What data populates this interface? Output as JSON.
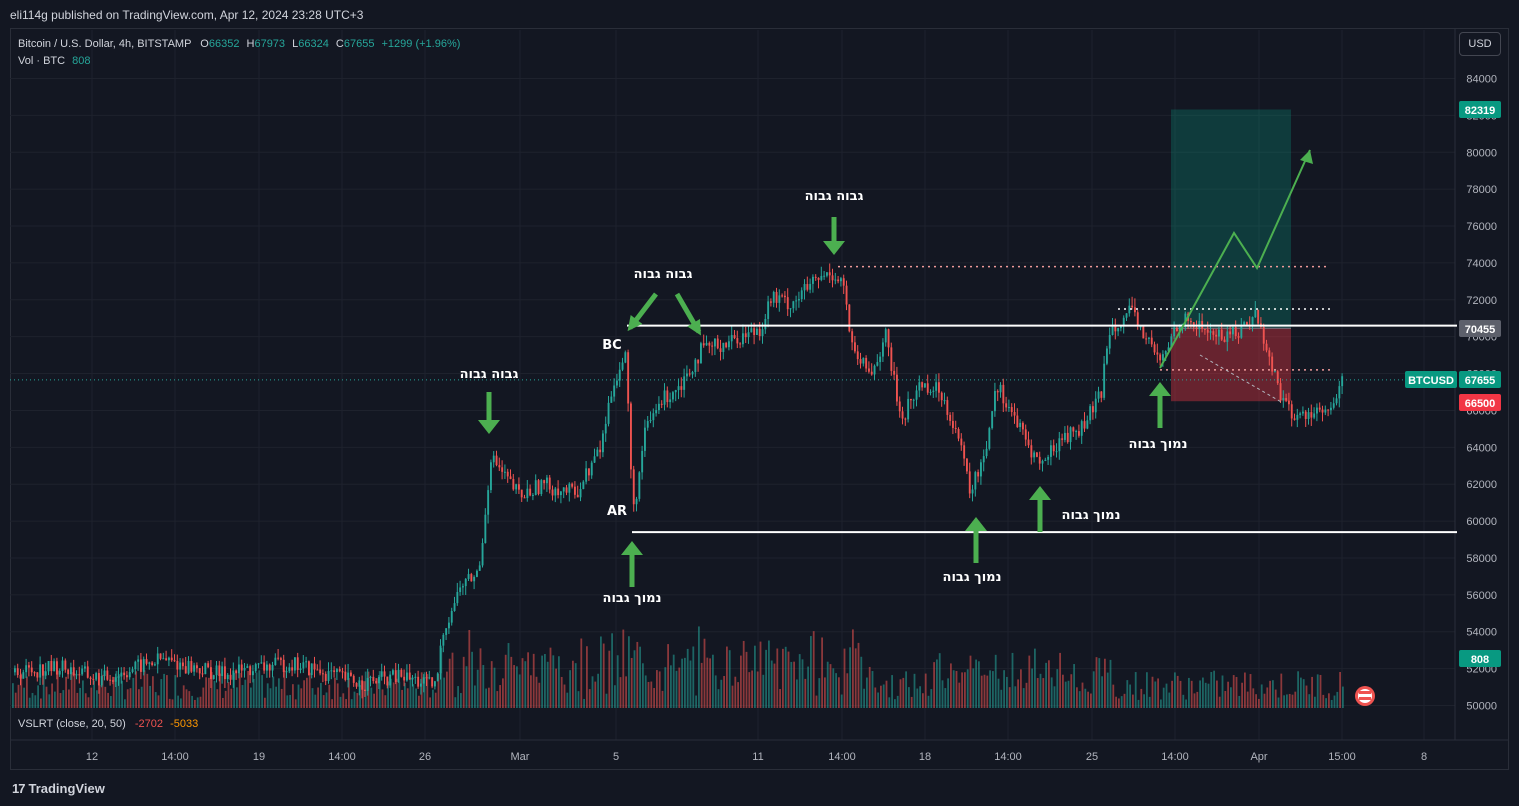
{
  "header": {
    "publisher": "eli114g published on TradingView.com, Apr 12, 2024 23:28 UTC+3"
  },
  "legend": {
    "symbol": "Bitcoin / U.S. Dollar, 4h, BITSTAMP",
    "open_label": "O",
    "open": "66352",
    "high_label": "H",
    "high": "67973",
    "low_label": "L",
    "low": "66324",
    "close_label": "C",
    "close": "67655",
    "change": "+1299 (+1.96%)",
    "vol_label": "Vol · BTC",
    "vol": "808"
  },
  "indicator": {
    "label": "VSLRT (close, 20, 50)",
    "v1": "-2702",
    "v2": "-5033"
  },
  "currency_button": "USD",
  "footer": {
    "brand": "TradingView",
    "brand_icon": "tradingview-logo-icon"
  },
  "colors": {
    "up": "#26a69a",
    "down": "#ef5350",
    "bg": "#131722",
    "arrow": "#4caf50"
  },
  "chart_data": {
    "type": "candlestick",
    "symbol": "BTCUSD",
    "y_axis": {
      "ticks": [
        50000,
        52000,
        54000,
        56000,
        58000,
        60000,
        62000,
        64000,
        66000,
        68000,
        70000,
        72000,
        74000,
        76000,
        78000,
        80000,
        82000,
        84000
      ],
      "range": [
        49800,
        84800
      ]
    },
    "x_axis": {
      "ticks": [
        "12",
        "14:00",
        "19",
        "14:00",
        "26",
        "Mar",
        "5",
        "11",
        "14:00",
        "18",
        "14:00",
        "25",
        "14:00",
        "Apr",
        "15:00",
        "8"
      ]
    },
    "price_tags": [
      {
        "label": "82319",
        "value": 82319,
        "color": "#089981"
      },
      {
        "label": "70455",
        "value": 70455,
        "color": "#5d606b"
      },
      {
        "label": "BTCUSD",
        "value": 67655,
        "color": "#089981",
        "symbol": true
      },
      {
        "label": "67655",
        "value": 67655,
        "color": "#089981"
      },
      {
        "label": "66500",
        "value": 66500,
        "color": "#f23645"
      },
      {
        "label": "808",
        "value": null,
        "color": "#089981",
        "volume": true
      }
    ],
    "annotations": [
      {
        "text": "גבוה גבוה",
        "x_date": "Feb 28",
        "y": 67200
      },
      {
        "text": "גבוה גבוה",
        "x_date": "Mar 7",
        "y": 73900
      },
      {
        "text": "גבוה גבוה",
        "x_date": "Mar 14",
        "y": 78100
      },
      {
        "text": "BC",
        "x_date": "Mar 5",
        "y": 70600
      },
      {
        "text": "AR",
        "x_date": "Mar 5",
        "y": 60600
      },
      {
        "text": "נמוך גבוה",
        "x_date": "Mar 5",
        "y": 56300
      },
      {
        "text": "נמוך גבוה",
        "x_date": "Mar 19",
        "y": 57700
      },
      {
        "text": "נמוך גבוה",
        "x_date": "Mar 21",
        "y": 60300
      },
      {
        "text": "נמוך גבוה",
        "x_date": "Mar 28",
        "y": 64200
      }
    ],
    "levels": [
      {
        "name": "BC line",
        "value": 70600,
        "style": "solid"
      },
      {
        "name": "AR line",
        "value": 59400,
        "style": "solid"
      },
      {
        "name": "ATH",
        "value": 73800,
        "style": "dotted"
      },
      {
        "name": "range high",
        "value": 71500,
        "style": "dotted"
      },
      {
        "name": "range low",
        "value": 68200,
        "style": "dotted"
      }
    ],
    "position": {
      "entry": 70455,
      "target": 82319,
      "stop": 66500
    },
    "last_price": 67655,
    "volume_last": 808
  }
}
